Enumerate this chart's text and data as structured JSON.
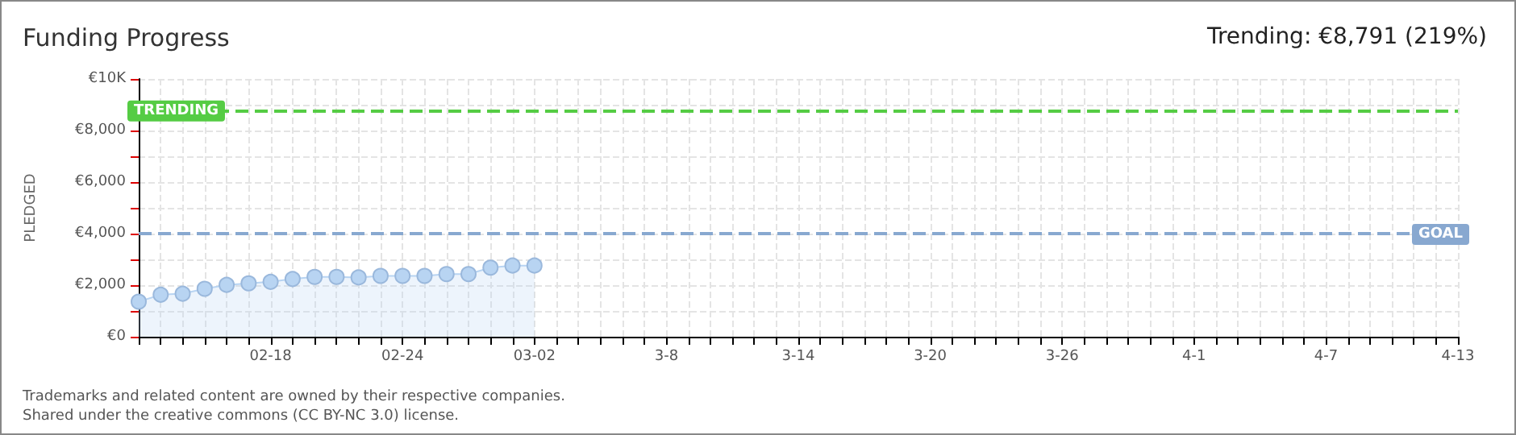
{
  "chart_data": {
    "type": "area",
    "title": "Funding Progress",
    "ylabel": "PLEDGED",
    "annotations": [
      "Trending: €8,791 (219%)",
      "Trademarks and related content are owned by their respective companies.",
      "Shared under the creative commons (CC BY-NC 3.0) license."
    ],
    "categories": [
      null,
      null,
      null,
      null,
      null,
      null,
      "02-18",
      null,
      null,
      null,
      null,
      null,
      "02-24",
      null,
      null,
      null,
      null,
      null,
      "03-02",
      null,
      null,
      null,
      null,
      null,
      "3-8",
      null,
      null,
      null,
      null,
      null,
      "3-14",
      null,
      null,
      null,
      null,
      null,
      "3-20",
      null,
      null,
      null,
      null,
      null,
      "3-26",
      null,
      null,
      null,
      null,
      null,
      "4-1",
      null,
      null,
      null,
      null,
      null,
      "4-7",
      null,
      null,
      null,
      null,
      null,
      "4-13"
    ],
    "series": [
      {
        "color": "#b8d4f2",
        "values": [
          1360,
          1630,
          1670,
          1860,
          2010,
          2070,
          2130,
          2240,
          2320,
          2320,
          2300,
          2360,
          2360,
          2360,
          2430,
          2430,
          2680,
          2760,
          2760,
          null,
          null,
          null,
          null,
          null,
          null,
          null,
          null,
          null,
          null,
          null,
          null,
          null,
          null,
          null,
          null,
          null,
          null,
          null,
          null,
          null,
          null,
          null,
          null,
          null,
          null,
          null,
          null,
          null,
          null,
          null,
          null,
          null,
          null,
          null,
          null,
          null,
          null,
          null,
          null,
          null,
          null
        ]
      }
    ],
    "ylim": [
      0,
      10000
    ],
    "yticks": [
      {
        "value": 0,
        "label": "€0"
      },
      {
        "value": 1000,
        "label": null
      },
      {
        "value": 2000,
        "label": "€2,000"
      },
      {
        "value": 3000,
        "label": null
      },
      {
        "value": 4000,
        "label": "€4,000"
      },
      {
        "value": 5000,
        "label": null
      },
      {
        "value": 6000,
        "label": "€6,000"
      },
      {
        "value": 7000,
        "label": null
      },
      {
        "value": 8000,
        "label": "€8,000"
      },
      {
        "value": 9000,
        "label": null
      },
      {
        "value": 10000,
        "label": "€10K"
      }
    ],
    "ref_lines": [
      {
        "axis": "y",
        "value": 8791,
        "label": "TRENDING",
        "color": "#55cc44",
        "line_style": "dashed"
      },
      {
        "axis": "y",
        "value": 4000,
        "label": "GOAL",
        "color": "#88a8d0",
        "line_style": "dashed"
      }
    ],
    "grid": true,
    "marker": "circle"
  }
}
